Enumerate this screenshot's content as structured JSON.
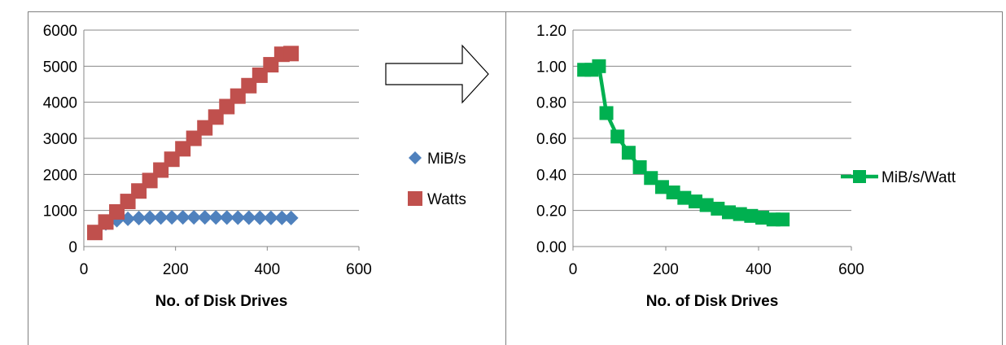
{
  "chart_data": [
    {
      "type": "scatter",
      "title": "",
      "xlabel": "No. of Disk Drives",
      "ylabel": "",
      "xlim": [
        0,
        600
      ],
      "ylim": [
        0,
        6000
      ],
      "xticks": [
        "0",
        "200",
        "400",
        "600"
      ],
      "yticks": [
        "0",
        "1000",
        "2000",
        "3000",
        "4000",
        "5000",
        "6000"
      ],
      "grid": "horizontal",
      "legend_position": "right",
      "series": [
        {
          "name": "MiB/s",
          "color": "#4F81BD",
          "marker": "diamond",
          "points": [
            [
              24,
              380
            ],
            [
              48,
              640
            ],
            [
              72,
              730
            ],
            [
              96,
              770
            ],
            [
              120,
              790
            ],
            [
              144,
              800
            ],
            [
              168,
              805
            ],
            [
              192,
              808
            ],
            [
              216,
              810
            ],
            [
              240,
              810
            ],
            [
              264,
              808
            ],
            [
              288,
              806
            ],
            [
              312,
              804
            ],
            [
              336,
              802
            ],
            [
              360,
              800
            ],
            [
              384,
              798
            ],
            [
              408,
              796
            ],
            [
              432,
              794
            ],
            [
              452,
              792
            ]
          ]
        },
        {
          "name": "Watts",
          "color": "#C0504D",
          "marker": "square",
          "points": [
            [
              24,
              390
            ],
            [
              48,
              680
            ],
            [
              72,
              960
            ],
            [
              96,
              1250
            ],
            [
              120,
              1540
            ],
            [
              144,
              1830
            ],
            [
              168,
              2120
            ],
            [
              192,
              2420
            ],
            [
              216,
              2710
            ],
            [
              240,
              3000
            ],
            [
              264,
              3290
            ],
            [
              288,
              3590
            ],
            [
              312,
              3880
            ],
            [
              336,
              4170
            ],
            [
              360,
              4460
            ],
            [
              384,
              4750
            ],
            [
              408,
              5040
            ],
            [
              432,
              5330
            ],
            [
              452,
              5350
            ]
          ]
        }
      ]
    },
    {
      "type": "line",
      "title": "",
      "xlabel": "No. of Disk Drives",
      "ylabel": "",
      "xlim": [
        0,
        600
      ],
      "ylim": [
        0,
        1.2
      ],
      "xticks": [
        "0",
        "200",
        "400",
        "600"
      ],
      "yticks": [
        "0.00",
        "0.20",
        "0.40",
        "0.60",
        "0.80",
        "1.00",
        "1.20"
      ],
      "grid": "horizontal",
      "legend_position": "right",
      "series": [
        {
          "name": "MiB/s/Watt",
          "color": "#00B050",
          "marker": "square",
          "points": [
            [
              24,
              0.98
            ],
            [
              40,
              0.98
            ],
            [
              56,
              1.0
            ],
            [
              72,
              0.74
            ],
            [
              96,
              0.61
            ],
            [
              120,
              0.52
            ],
            [
              144,
              0.44
            ],
            [
              168,
              0.38
            ],
            [
              192,
              0.33
            ],
            [
              216,
              0.3
            ],
            [
              240,
              0.27
            ],
            [
              264,
              0.25
            ],
            [
              288,
              0.23
            ],
            [
              312,
              0.21
            ],
            [
              336,
              0.19
            ],
            [
              360,
              0.18
            ],
            [
              384,
              0.17
            ],
            [
              408,
              0.16
            ],
            [
              432,
              0.15
            ],
            [
              452,
              0.15
            ]
          ]
        }
      ]
    }
  ]
}
